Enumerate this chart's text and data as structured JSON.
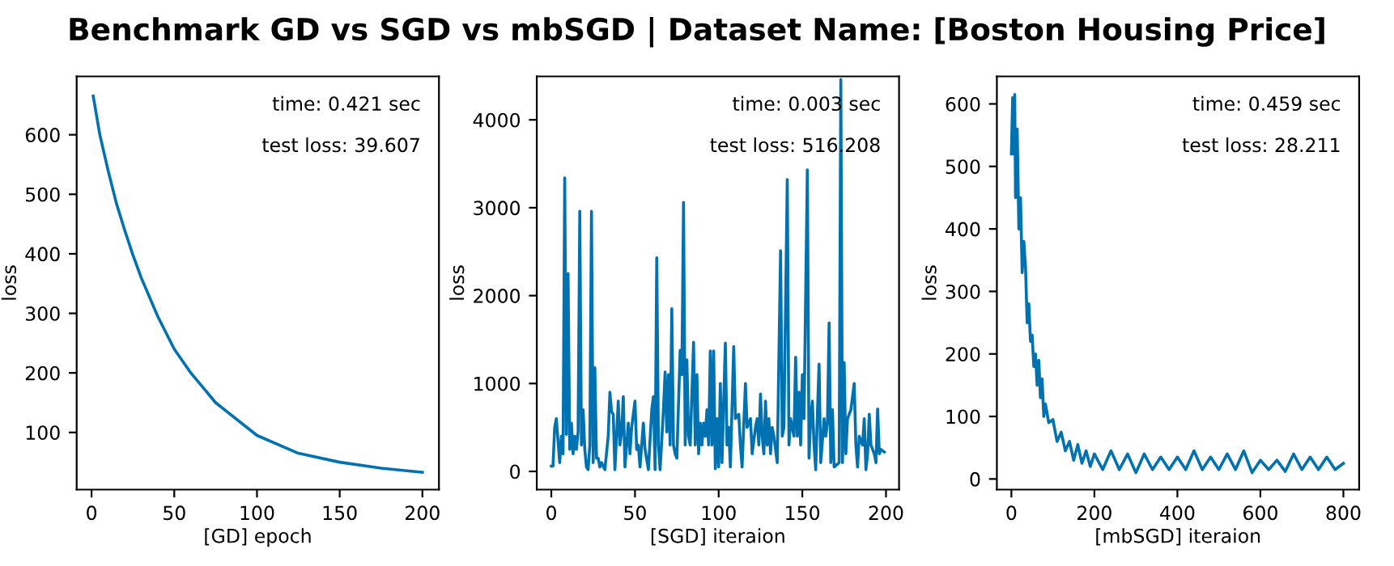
{
  "chart_data": [
    {
      "type": "line",
      "title": "Benchmark GD vs SGD vs mbSGD | Dataset Name: [Boston Housing Price]",
      "xlabel": "[GD] epoch",
      "ylabel": "loss",
      "annotations": [
        "time: 0.421 sec",
        "test loss: 39.607"
      ],
      "xlim": [
        -9,
        210
      ],
      "ylim": [
        4,
        698
      ],
      "xticks": [
        0,
        50,
        100,
        150,
        200
      ],
      "yticks": [
        100,
        200,
        300,
        400,
        500,
        600
      ],
      "series": [
        {
          "color": "#0072b2",
          "x": [
            1,
            5,
            10,
            15,
            20,
            25,
            30,
            40,
            50,
            60,
            75,
            100,
            125,
            150,
            175,
            200
          ],
          "values": [
            665,
            600,
            540,
            485,
            440,
            398,
            360,
            295,
            240,
            200,
            150,
            95,
            65,
            50,
            40,
            33
          ]
        }
      ]
    },
    {
      "type": "line",
      "xlabel": "[SGD] iteraion",
      "ylabel": "loss",
      "annotations": [
        "time: 0.003 sec",
        "test loss: 516.208"
      ],
      "xlim": [
        -8.7,
        207.8
      ],
      "ylim": [
        -207,
        4494
      ],
      "xticks": [
        0,
        50,
        100,
        150,
        200
      ],
      "yticks": [
        0,
        1000,
        2000,
        3000,
        4000
      ],
      "series": [
        {
          "color": "#0072b2",
          "x": [
            0,
            1,
            2,
            3,
            5,
            6,
            7,
            8,
            9,
            10,
            11,
            12,
            13,
            14,
            15,
            16,
            17,
            18,
            19,
            20,
            21,
            22,
            23,
            24,
            25,
            26,
            27,
            28,
            29,
            30,
            32,
            34,
            35,
            36,
            37,
            38,
            40,
            41,
            42,
            43,
            44,
            46,
            47,
            48,
            50,
            51,
            52,
            53,
            55,
            56,
            58,
            60,
            61,
            62,
            63,
            64,
            65,
            67,
            68,
            69,
            70,
            71,
            72,
            73,
            74,
            75,
            77,
            78,
            79,
            80,
            81,
            82,
            83,
            85,
            86,
            87,
            88,
            89,
            90,
            91,
            92,
            93,
            94,
            95,
            96,
            97,
            98,
            99,
            100,
            101,
            102,
            104,
            105,
            106,
            107,
            109,
            110,
            112,
            113,
            114,
            116,
            117,
            119,
            120,
            122,
            123,
            124,
            125,
            126,
            127,
            128,
            129,
            130,
            131,
            132,
            133,
            135,
            137,
            138,
            139,
            141,
            142,
            143,
            145,
            146,
            147,
            148,
            149,
            150,
            151,
            153,
            154,
            155,
            156,
            157,
            158,
            159,
            160,
            161,
            163,
            164,
            165,
            166,
            167,
            168,
            169,
            172,
            173,
            174,
            175,
            176,
            177,
            178,
            179,
            181,
            182,
            183,
            184,
            186,
            187,
            188,
            189,
            190,
            191,
            192,
            193,
            194,
            195,
            196,
            197,
            199
          ],
          "values": [
            60,
            60,
            500,
            600,
            100,
            400,
            200,
            3340,
            420,
            2250,
            250,
            550,
            200,
            400,
            250,
            450,
            2960,
            300,
            700,
            250,
            50,
            20,
            300,
            2960,
            100,
            1180,
            150,
            150,
            50,
            100,
            20,
            400,
            900,
            680,
            650,
            20,
            800,
            300,
            450,
            850,
            50,
            550,
            200,
            500,
            800,
            250,
            300,
            50,
            550,
            250,
            20,
            700,
            850,
            20,
            2430,
            300,
            20,
            700,
            1130,
            450,
            1100,
            300,
            1850,
            300,
            200,
            150,
            1380,
            1100,
            3060,
            300,
            1270,
            400,
            300,
            1470,
            300,
            1100,
            200,
            550,
            300,
            550,
            400,
            700,
            300,
            1370,
            300,
            1370,
            30,
            600,
            50,
            1000,
            100,
            1460,
            300,
            500,
            50,
            1420,
            600,
            650,
            300,
            50,
            1000,
            500,
            600,
            200,
            500,
            600,
            300,
            880,
            400,
            200,
            800,
            300,
            600,
            200,
            500,
            400,
            100,
            2510,
            400,
            500,
            3320,
            300,
            600,
            400,
            1300,
            400,
            900,
            300,
            1100,
            600,
            3430,
            150,
            600,
            800,
            300,
            20,
            650,
            1220,
            100,
            600,
            400,
            550,
            1690,
            100,
            700,
            50,
            100,
            4460,
            100,
            1240,
            200,
            600,
            650,
            700,
            1000,
            300,
            50,
            400,
            300,
            600,
            20,
            200,
            650,
            300,
            250,
            200,
            100,
            710,
            200,
            250,
            220
          ]
        }
      ]
    },
    {
      "type": "line",
      "xlabel": "[mbSGD] iteraion",
      "ylabel": "loss",
      "annotations": [
        "time: 0.459 sec",
        "test loss: 28.211"
      ],
      "xlim": [
        -35,
        838
      ],
      "ylim": [
        -17,
        644
      ],
      "xticks": [
        0,
        200,
        400,
        600,
        800
      ],
      "yticks": [
        0,
        100,
        200,
        300,
        400,
        500,
        600
      ],
      "series": [
        {
          "color": "#0072b2",
          "x": [
            0,
            3,
            6,
            8,
            10,
            14,
            18,
            22,
            26,
            30,
            34,
            38,
            42,
            46,
            50,
            54,
            58,
            62,
            66,
            70,
            74,
            78,
            82,
            90,
            100,
            110,
            120,
            130,
            140,
            150,
            160,
            170,
            180,
            190,
            200,
            220,
            240,
            260,
            280,
            300,
            320,
            340,
            360,
            380,
            400,
            420,
            440,
            460,
            480,
            500,
            520,
            540,
            560,
            580,
            600,
            620,
            640,
            660,
            680,
            700,
            720,
            740,
            760,
            780,
            800
          ],
          "values": [
            520,
            610,
            520,
            615,
            450,
            560,
            400,
            450,
            330,
            380,
            340,
            250,
            280,
            220,
            230,
            180,
            200,
            150,
            190,
            130,
            160,
            100,
            120,
            90,
            95,
            60,
            75,
            45,
            60,
            30,
            55,
            25,
            45,
            20,
            40,
            15,
            45,
            15,
            40,
            10,
            40,
            15,
            35,
            15,
            35,
            15,
            45,
            15,
            35,
            15,
            40,
            15,
            45,
            10,
            30,
            15,
            30,
            12,
            40,
            15,
            35,
            15,
            35,
            15,
            25
          ]
        }
      ]
    }
  ]
}
